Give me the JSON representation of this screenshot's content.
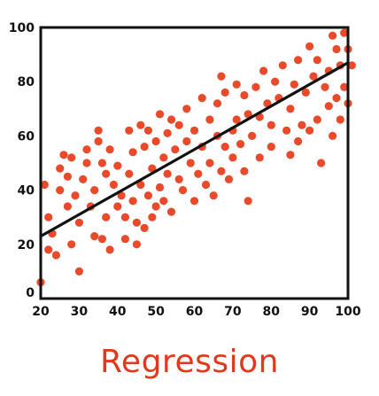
{
  "chart_data": {
    "type": "scatter",
    "title": "",
    "xlabel": "",
    "ylabel": "",
    "xlim": [
      20,
      100
    ],
    "ylim": [
      0,
      100
    ],
    "x_ticks": [
      "20",
      "30",
      "40",
      "50",
      "60",
      "70",
      "80",
      "90",
      "100"
    ],
    "y_ticks": [
      "0",
      "20",
      "40",
      "60",
      "80",
      "100"
    ],
    "grid": false,
    "point_color": "#e84a2a",
    "line_color": "#111111",
    "trend_line": {
      "from": [
        20,
        23
      ],
      "to": [
        100,
        87
      ]
    },
    "points": [
      [
        20,
        6
      ],
      [
        21,
        42
      ],
      [
        22,
        30
      ],
      [
        22,
        18
      ],
      [
        23,
        24
      ],
      [
        24,
        16
      ],
      [
        25,
        40
      ],
      [
        25,
        48
      ],
      [
        26,
        53
      ],
      [
        27,
        34
      ],
      [
        27,
        45
      ],
      [
        28,
        20
      ],
      [
        28,
        52
      ],
      [
        29,
        38
      ],
      [
        30,
        10
      ],
      [
        30,
        28
      ],
      [
        31,
        44
      ],
      [
        32,
        50
      ],
      [
        32,
        55
      ],
      [
        33,
        34
      ],
      [
        34,
        23
      ],
      [
        34,
        40
      ],
      [
        35,
        62
      ],
      [
        35,
        58
      ],
      [
        36,
        22
      ],
      [
        36,
        50
      ],
      [
        37,
        46
      ],
      [
        37,
        30
      ],
      [
        38,
        18
      ],
      [
        38,
        55
      ],
      [
        39,
        42
      ],
      [
        40,
        34
      ],
      [
        40,
        49
      ],
      [
        41,
        38
      ],
      [
        42,
        22
      ],
      [
        42,
        30
      ],
      [
        43,
        62
      ],
      [
        43,
        46
      ],
      [
        44,
        36
      ],
      [
        44,
        54
      ],
      [
        45,
        20
      ],
      [
        45,
        28
      ],
      [
        46,
        64
      ],
      [
        46,
        42
      ],
      [
        47,
        26
      ],
      [
        47,
        56
      ],
      [
        48,
        38
      ],
      [
        48,
        62
      ],
      [
        49,
        30
      ],
      [
        49,
        48
      ],
      [
        50,
        34
      ],
      [
        50,
        58
      ],
      [
        51,
        41
      ],
      [
        51,
        68
      ],
      [
        52,
        52
      ],
      [
        52,
        36
      ],
      [
        53,
        61
      ],
      [
        53,
        46
      ],
      [
        54,
        66
      ],
      [
        54,
        32
      ],
      [
        55,
        55
      ],
      [
        56,
        44
      ],
      [
        56,
        64
      ],
      [
        57,
        40
      ],
      [
        58,
        58
      ],
      [
        58,
        70
      ],
      [
        59,
        50
      ],
      [
        60,
        36
      ],
      [
        60,
        62
      ],
      [
        61,
        46
      ],
      [
        62,
        56
      ],
      [
        62,
        74
      ],
      [
        63,
        42
      ],
      [
        64,
        66
      ],
      [
        64,
        50
      ],
      [
        65,
        38
      ],
      [
        66,
        72
      ],
      [
        66,
        60
      ],
      [
        67,
        47
      ],
      [
        67,
        82
      ],
      [
        68,
        56
      ],
      [
        68,
        76
      ],
      [
        69,
        44
      ],
      [
        70,
        62
      ],
      [
        70,
        52
      ],
      [
        71,
        66
      ],
      [
        71,
        79
      ],
      [
        72,
        57
      ],
      [
        73,
        47
      ],
      [
        73,
        75
      ],
      [
        74,
        68
      ],
      [
        74,
        36
      ],
      [
        75,
        60
      ],
      [
        76,
        78
      ],
      [
        77,
        52
      ],
      [
        77,
        67
      ],
      [
        78,
        84
      ],
      [
        79,
        72
      ],
      [
        80,
        56
      ],
      [
        80,
        64
      ],
      [
        81,
        80
      ],
      [
        82,
        74
      ],
      [
        83,
        86
      ],
      [
        84,
        62
      ],
      [
        85,
        70
      ],
      [
        85,
        53
      ],
      [
        86,
        79
      ],
      [
        87,
        58
      ],
      [
        87,
        88
      ],
      [
        88,
        64
      ],
      [
        89,
        76
      ],
      [
        90,
        62
      ],
      [
        90,
        93
      ],
      [
        91,
        82
      ],
      [
        92,
        66
      ],
      [
        92,
        88
      ],
      [
        93,
        50
      ],
      [
        94,
        78
      ],
      [
        95,
        71
      ],
      [
        95,
        84
      ],
      [
        96,
        97
      ],
      [
        96,
        60
      ],
      [
        97,
        74
      ],
      [
        97,
        92
      ],
      [
        98,
        66
      ],
      [
        98,
        86
      ],
      [
        99,
        98
      ],
      [
        99,
        78
      ],
      [
        100,
        72
      ],
      [
        100,
        92
      ],
      [
        101,
        86
      ]
    ]
  },
  "caption": "Regression"
}
